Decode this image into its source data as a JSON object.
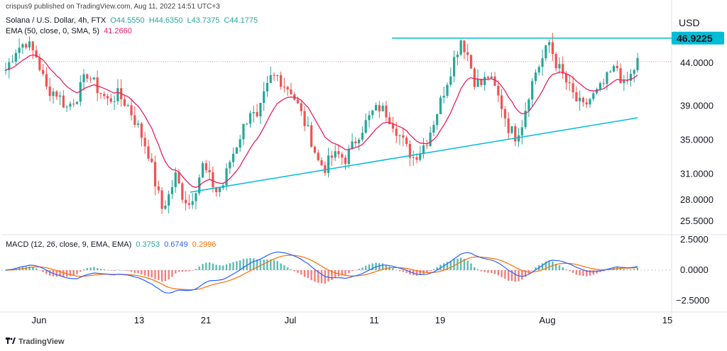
{
  "header": {
    "published": "crispus9 published on TradingView.com, Aug 11, 2022 14:51 UTC+3",
    "symbol": "Solana / U.S. Dollar, 4h, FTX",
    "ohlc": {
      "o": "O44.5550",
      "h": "H44.6350",
      "l": "L43.7375",
      "c": "C44.1775"
    },
    "ema_label": "EMA (50, close, 0, SMA, 5)",
    "ema_value": "41.2660",
    "macd_label": "MACD (12, 26, close, 9, EMA, EMA)",
    "macd_values": [
      "0.3753",
      "0.6749",
      "0.2996"
    ],
    "currency": "USD"
  },
  "footer": {
    "logo_text": "TradingView"
  },
  "colors": {
    "up": "#26a69a",
    "down": "#ef5350",
    "ema": "#e91e63",
    "trendline": "#00bcd4",
    "macd_line": "#2962ff",
    "signal_line": "#ff6d00",
    "hist_up": "#26a69a",
    "hist_down": "#ef5350",
    "price_tag_bg": "#00bcd4"
  },
  "chart_data": [
    {
      "type": "candlestick",
      "title": "Solana / U.S. Dollar, 4h, FTX",
      "y_ticks": [
        "44.0000",
        "39.0000",
        "35.0000",
        "31.0000",
        "28.0000",
        "25.5000"
      ],
      "y_tick_values": [
        44.0,
        39.0,
        35.0,
        31.0,
        28.0,
        25.5
      ],
      "x_ticks": [
        "Jun",
        "13",
        "21",
        "Jul",
        "11",
        "19",
        "Aug",
        "15"
      ],
      "price_tag": "46.9225",
      "last_price": 44.18,
      "resistance": 46.92,
      "support_trendline": [
        [
          28.9,
          37.6
        ]
      ],
      "price_path": [
        [
          0,
          43.2
        ],
        [
          3,
          45.6
        ],
        [
          6,
          46.5
        ],
        [
          9,
          44.8
        ],
        [
          12,
          41.0
        ],
        [
          15,
          40.5
        ],
        [
          18,
          38.8
        ],
        [
          21,
          40.2
        ],
        [
          24,
          42.8
        ],
        [
          27,
          41.0
        ],
        [
          30,
          39.6
        ],
        [
          33,
          40.3
        ],
        [
          36,
          39.0
        ],
        [
          39,
          36.5
        ],
        [
          42,
          33.5
        ],
        [
          44,
          30.0
        ],
        [
          46,
          27.0
        ],
        [
          48,
          28.5
        ],
        [
          50,
          30.8
        ],
        [
          52,
          28.6
        ],
        [
          54,
          27.5
        ],
        [
          56,
          29.5
        ],
        [
          58,
          32.0
        ],
        [
          60,
          30.5
        ],
        [
          62,
          29.0
        ],
        [
          64,
          29.8
        ],
        [
          66,
          32.5
        ],
        [
          68,
          34.5
        ],
        [
          70,
          36.5
        ],
        [
          72,
          38.5
        ],
        [
          74,
          37.2
        ],
        [
          76,
          40.0
        ],
        [
          78,
          42.2
        ],
        [
          80,
          42.5
        ],
        [
          82,
          41.5
        ],
        [
          84,
          40.8
        ],
        [
          86,
          39.0
        ],
        [
          88,
          37.0
        ],
        [
          90,
          35.0
        ],
        [
          92,
          32.5
        ],
        [
          94,
          31.8
        ],
        [
          96,
          33.0
        ],
        [
          98,
          33.2
        ],
        [
          100,
          32.8
        ],
        [
          102,
          34.2
        ],
        [
          104,
          35.8
        ],
        [
          106,
          37.0
        ],
        [
          108,
          38.2
        ],
        [
          110,
          38.8
        ],
        [
          112,
          38.2
        ],
        [
          114,
          37.0
        ],
        [
          116,
          35.5
        ],
        [
          118,
          34.0
        ],
        [
          120,
          33.0
        ],
        [
          122,
          33.8
        ],
        [
          124,
          35.0
        ],
        [
          126,
          37.2
        ],
        [
          128,
          39.5
        ],
        [
          130,
          42.0
        ],
        [
          132,
          44.5
        ],
        [
          134,
          46.8
        ],
        [
          136,
          45.0
        ],
        [
          138,
          42.0
        ],
        [
          140,
          41.5
        ],
        [
          142,
          42.5
        ],
        [
          144,
          41.0
        ],
        [
          146,
          39.0
        ],
        [
          148,
          36.5
        ],
        [
          150,
          35.5
        ],
        [
          152,
          37.0
        ],
        [
          154,
          40.5
        ],
        [
          156,
          43.0
        ],
        [
          158,
          44.5
        ],
        [
          160,
          46.4
        ],
        [
          162,
          44.0
        ],
        [
          164,
          42.5
        ],
        [
          166,
          41.0
        ],
        [
          168,
          39.6
        ],
        [
          170,
          38.8
        ],
        [
          172,
          39.8
        ],
        [
          174,
          40.5
        ],
        [
          176,
          41.5
        ],
        [
          178,
          42.8
        ],
        [
          180,
          43.5
        ],
        [
          182,
          41.2
        ],
        [
          184,
          42.5
        ],
        [
          186,
          44.2
        ]
      ]
    },
    {
      "type": "macd",
      "title": "MACD (12, 26, close, 9, EMA, EMA)",
      "y_ticks": [
        "2.5000",
        "0.0000",
        "−2.5000"
      ],
      "y_tick_values": [
        2.5,
        0,
        -2.5
      ]
    }
  ]
}
